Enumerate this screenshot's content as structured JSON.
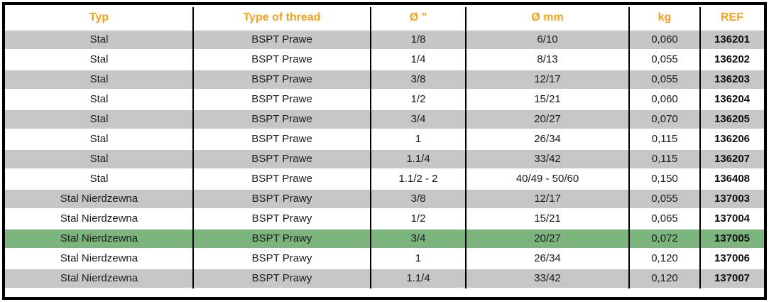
{
  "colors": {
    "accent_orange": "#F5A11D",
    "row_gray": "#C6C6C6",
    "row_green": "#7BB47D",
    "row_white": "#FFFFFF",
    "border_black": "#000000"
  },
  "table": {
    "columns": [
      {
        "key": "typ",
        "label": "Typ"
      },
      {
        "key": "thread",
        "label": "Type of thread"
      },
      {
        "key": "d_in",
        "label": "Ø \""
      },
      {
        "key": "d_mm",
        "label": "Ø mm"
      },
      {
        "key": "kg",
        "label": "kg"
      },
      {
        "key": "ref",
        "label": "REF"
      }
    ],
    "rows": [
      {
        "typ": "Stal",
        "thread": "BSPT Prawe",
        "d_in": "1/8",
        "d_mm": "6/10",
        "kg": "0,060",
        "ref": "136201",
        "bg": "gray"
      },
      {
        "typ": "Stal",
        "thread": "BSPT Prawe",
        "d_in": "1/4",
        "d_mm": "8/13",
        "kg": "0,055",
        "ref": "136202",
        "bg": "white"
      },
      {
        "typ": "Stal",
        "thread": "BSPT Prawe",
        "d_in": "3/8",
        "d_mm": "12/17",
        "kg": "0,055",
        "ref": "136203",
        "bg": "gray"
      },
      {
        "typ": "Stal",
        "thread": "BSPT Prawe",
        "d_in": "1/2",
        "d_mm": "15/21",
        "kg": "0,060",
        "ref": "136204",
        "bg": "white"
      },
      {
        "typ": "Stal",
        "thread": "BSPT Prawe",
        "d_in": "3/4",
        "d_mm": "20/27",
        "kg": "0,070",
        "ref": "136205",
        "bg": "gray"
      },
      {
        "typ": "Stal",
        "thread": "BSPT Prawe",
        "d_in": "1",
        "d_mm": "26/34",
        "kg": "0,115",
        "ref": "136206",
        "bg": "white"
      },
      {
        "typ": "Stal",
        "thread": "BSPT Prawe",
        "d_in": "1.1/4",
        "d_mm": "33/42",
        "kg": "0,115",
        "ref": "136207",
        "bg": "gray"
      },
      {
        "typ": "Stal",
        "thread": "BSPT Prawe",
        "d_in": "1.1/2 - 2",
        "d_mm": "40/49 - 50/60",
        "kg": "0,150",
        "ref": "136408",
        "bg": "white"
      },
      {
        "typ": "Stal Nierdzewna",
        "thread": "BSPT Prawy",
        "d_in": "3/8",
        "d_mm": "12/17",
        "kg": "0,055",
        "ref": "137003",
        "bg": "gray"
      },
      {
        "typ": "Stal Nierdzewna",
        "thread": "BSPT Prawy",
        "d_in": "1/2",
        "d_mm": "15/21",
        "kg": "0,065",
        "ref": "137004",
        "bg": "white"
      },
      {
        "typ": "Stal Nierdzewna",
        "thread": "BSPT Prawy",
        "d_in": "3/4",
        "d_mm": "20/27",
        "kg": "0,072",
        "ref": "137005",
        "bg": "green"
      },
      {
        "typ": "Stal Nierdzewna",
        "thread": "BSPT Prawy",
        "d_in": "1",
        "d_mm": "26/34",
        "kg": "0,120",
        "ref": "137006",
        "bg": "white"
      },
      {
        "typ": "Stal Nierdzewna",
        "thread": "BSPT Prawy",
        "d_in": "1.1/4",
        "d_mm": "33/42",
        "kg": "0,120",
        "ref": "137007",
        "bg": "gray"
      }
    ]
  }
}
